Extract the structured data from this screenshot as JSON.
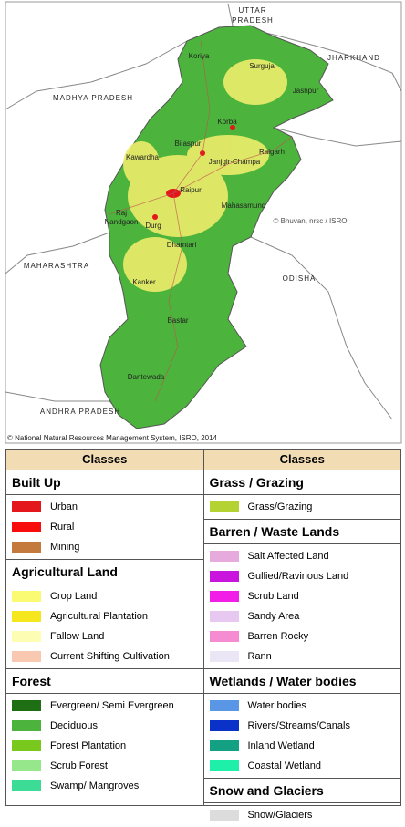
{
  "map": {
    "state_labels": [
      "UTTAR",
      "PRADESH",
      "JHARKHAND",
      "MADHYA PRADESH",
      "MAHARASHTRA",
      "ODISHA",
      "ANDHRA PRADESH"
    ],
    "district_labels": [
      "Koriya",
      "Surguja",
      "Jashpur",
      "Korba",
      "Bilaspur",
      "Raigarh",
      "Janjgir-Champa",
      "Kawardha",
      "Raipur",
      "Mahasamund",
      "Raj",
      "Nandgaon",
      "Durg",
      "Dhamtari",
      "Kanker",
      "Bastar",
      "Dantewada"
    ],
    "watermark": "© Bhuvan, nrsc / ISRO",
    "copyright": "© National Natural Resources Management System, ISRO, 2014"
  },
  "legend": {
    "columns": [
      {
        "header": "Classes",
        "sections": [
          {
            "title": "Built Up",
            "items": [
              {
                "name": "Urban",
                "color": "#e3171c"
              },
              {
                "name": "Rural",
                "color": "#f80d0d"
              },
              {
                "name": "Mining",
                "color": "#c47a3c"
              }
            ]
          },
          {
            "title": "Agricultural Land",
            "items": [
              {
                "name": "Crop Land",
                "color": "#fafa73"
              },
              {
                "name": "Agricultural Plantation",
                "color": "#f5e61e"
              },
              {
                "name": "Fallow Land",
                "color": "#fdfdb4"
              },
              {
                "name": "Current Shifting Cultivation",
                "color": "#f9c8b0"
              }
            ]
          },
          {
            "title": "Forest",
            "items": [
              {
                "name": "Evergreen/ Semi Evergreen",
                "color": "#1e6e14"
              },
              {
                "name": "Deciduous",
                "color": "#4cb43c"
              },
              {
                "name": "Forest Plantation",
                "color": "#78c81e"
              },
              {
                "name": "Scrub Forest",
                "color": "#96e68c"
              },
              {
                "name": "Swamp/ Mangroves",
                "color": "#3cdc96"
              }
            ]
          }
        ]
      },
      {
        "header": "Classes",
        "sections": [
          {
            "title": "Grass / Grazing",
            "items": [
              {
                "name": "Grass/Grazing",
                "color": "#b4d232"
              }
            ]
          },
          {
            "title": "Barren / Waste Lands",
            "items": [
              {
                "name": "Salt Affected Land",
                "color": "#e6aadc"
              },
              {
                "name": "Gullied/Ravinous Land",
                "color": "#c814dc"
              },
              {
                "name": "Scrub Land",
                "color": "#f01ee6"
              },
              {
                "name": "Sandy Area",
                "color": "#e6c8f0"
              },
              {
                "name": "Barren Rocky",
                "color": "#f58cd2"
              },
              {
                "name": "Rann",
                "color": "#ebe6f5"
              }
            ]
          },
          {
            "title": "Wetlands / Water bodies",
            "items": [
              {
                "name": "Water bodies",
                "color": "#5a96e6"
              },
              {
                "name": "Rivers/Streams/Canals",
                "color": "#0a32c8"
              },
              {
                "name": "Inland Wetland",
                "color": "#14a082"
              },
              {
                "name": "Coastal Wetland",
                "color": "#1ef0aa"
              }
            ]
          },
          {
            "title": "Snow and Glaciers",
            "items": [
              {
                "name": "Snow/Glaciers",
                "color": "#dcdcdc"
              }
            ]
          }
        ]
      }
    ]
  }
}
